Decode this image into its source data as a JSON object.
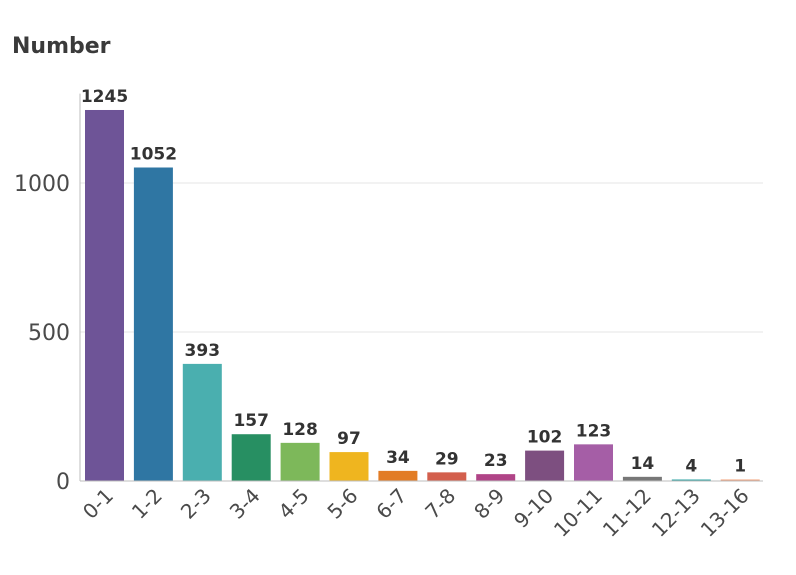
{
  "chart_data": {
    "type": "bar",
    "title": "Number",
    "xlabel": "",
    "ylabel": "",
    "ylim": [
      0,
      1300
    ],
    "yticks": [
      0,
      500,
      1000
    ],
    "grid": true,
    "categories": [
      "0-1",
      "1-2",
      "2-3",
      "3-4",
      "4-5",
      "5-6",
      "6-7",
      "7-8",
      "8-9",
      "9-10",
      "10-11",
      "11-12",
      "12-13",
      "13-16"
    ],
    "values": [
      1245,
      1052,
      393,
      157,
      128,
      97,
      34,
      29,
      23,
      102,
      123,
      14,
      4,
      1
    ],
    "colors": [
      "#6e5497",
      "#2f76a3",
      "#4aafaf",
      "#278f62",
      "#7db85a",
      "#efb51f",
      "#e27c25",
      "#d35f4d",
      "#b04487",
      "#7d4f80",
      "#a55ea6",
      "#777777",
      "#2ea3a3",
      "#f0a07a"
    ]
  }
}
